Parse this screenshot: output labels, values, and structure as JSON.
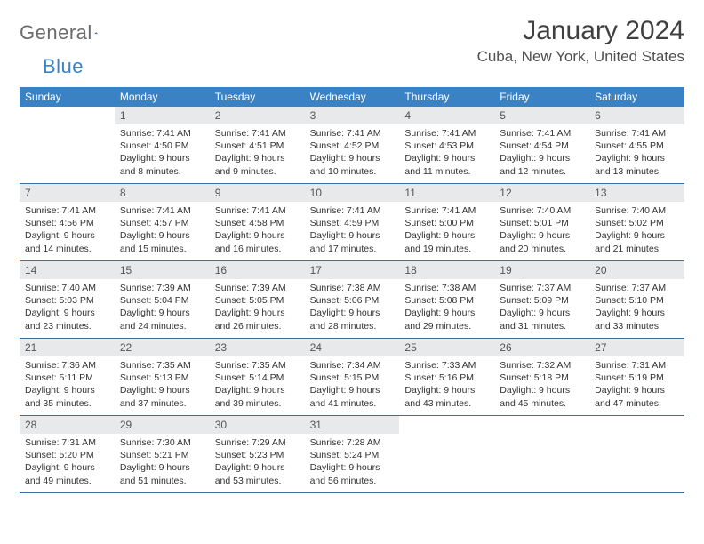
{
  "brand": {
    "part1": "General",
    "part2": "Blue"
  },
  "title": "January 2024",
  "location": "Cuba, New York, United States",
  "colors": {
    "header_bg": "#3b82c4",
    "header_text": "#ffffff",
    "daynum_bg": "#e7e9eb",
    "border": "#3b6fa0",
    "text": "#333333",
    "logo_gray": "#6b6b6b",
    "logo_blue": "#3b82c4"
  },
  "weekdays": [
    "Sunday",
    "Monday",
    "Tuesday",
    "Wednesday",
    "Thursday",
    "Friday",
    "Saturday"
  ],
  "weeks": [
    [
      {
        "n": "",
        "sr": "",
        "ss": "",
        "dl": ""
      },
      {
        "n": "1",
        "sr": "Sunrise: 7:41 AM",
        "ss": "Sunset: 4:50 PM",
        "dl": "Daylight: 9 hours and 8 minutes."
      },
      {
        "n": "2",
        "sr": "Sunrise: 7:41 AM",
        "ss": "Sunset: 4:51 PM",
        "dl": "Daylight: 9 hours and 9 minutes."
      },
      {
        "n": "3",
        "sr": "Sunrise: 7:41 AM",
        "ss": "Sunset: 4:52 PM",
        "dl": "Daylight: 9 hours and 10 minutes."
      },
      {
        "n": "4",
        "sr": "Sunrise: 7:41 AM",
        "ss": "Sunset: 4:53 PM",
        "dl": "Daylight: 9 hours and 11 minutes."
      },
      {
        "n": "5",
        "sr": "Sunrise: 7:41 AM",
        "ss": "Sunset: 4:54 PM",
        "dl": "Daylight: 9 hours and 12 minutes."
      },
      {
        "n": "6",
        "sr": "Sunrise: 7:41 AM",
        "ss": "Sunset: 4:55 PM",
        "dl": "Daylight: 9 hours and 13 minutes."
      }
    ],
    [
      {
        "n": "7",
        "sr": "Sunrise: 7:41 AM",
        "ss": "Sunset: 4:56 PM",
        "dl": "Daylight: 9 hours and 14 minutes."
      },
      {
        "n": "8",
        "sr": "Sunrise: 7:41 AM",
        "ss": "Sunset: 4:57 PM",
        "dl": "Daylight: 9 hours and 15 minutes."
      },
      {
        "n": "9",
        "sr": "Sunrise: 7:41 AM",
        "ss": "Sunset: 4:58 PM",
        "dl": "Daylight: 9 hours and 16 minutes."
      },
      {
        "n": "10",
        "sr": "Sunrise: 7:41 AM",
        "ss": "Sunset: 4:59 PM",
        "dl": "Daylight: 9 hours and 17 minutes."
      },
      {
        "n": "11",
        "sr": "Sunrise: 7:41 AM",
        "ss": "Sunset: 5:00 PM",
        "dl": "Daylight: 9 hours and 19 minutes."
      },
      {
        "n": "12",
        "sr": "Sunrise: 7:40 AM",
        "ss": "Sunset: 5:01 PM",
        "dl": "Daylight: 9 hours and 20 minutes."
      },
      {
        "n": "13",
        "sr": "Sunrise: 7:40 AM",
        "ss": "Sunset: 5:02 PM",
        "dl": "Daylight: 9 hours and 21 minutes."
      }
    ],
    [
      {
        "n": "14",
        "sr": "Sunrise: 7:40 AM",
        "ss": "Sunset: 5:03 PM",
        "dl": "Daylight: 9 hours and 23 minutes."
      },
      {
        "n": "15",
        "sr": "Sunrise: 7:39 AM",
        "ss": "Sunset: 5:04 PM",
        "dl": "Daylight: 9 hours and 24 minutes."
      },
      {
        "n": "16",
        "sr": "Sunrise: 7:39 AM",
        "ss": "Sunset: 5:05 PM",
        "dl": "Daylight: 9 hours and 26 minutes."
      },
      {
        "n": "17",
        "sr": "Sunrise: 7:38 AM",
        "ss": "Sunset: 5:06 PM",
        "dl": "Daylight: 9 hours and 28 minutes."
      },
      {
        "n": "18",
        "sr": "Sunrise: 7:38 AM",
        "ss": "Sunset: 5:08 PM",
        "dl": "Daylight: 9 hours and 29 minutes."
      },
      {
        "n": "19",
        "sr": "Sunrise: 7:37 AM",
        "ss": "Sunset: 5:09 PM",
        "dl": "Daylight: 9 hours and 31 minutes."
      },
      {
        "n": "20",
        "sr": "Sunrise: 7:37 AM",
        "ss": "Sunset: 5:10 PM",
        "dl": "Daylight: 9 hours and 33 minutes."
      }
    ],
    [
      {
        "n": "21",
        "sr": "Sunrise: 7:36 AM",
        "ss": "Sunset: 5:11 PM",
        "dl": "Daylight: 9 hours and 35 minutes."
      },
      {
        "n": "22",
        "sr": "Sunrise: 7:35 AM",
        "ss": "Sunset: 5:13 PM",
        "dl": "Daylight: 9 hours and 37 minutes."
      },
      {
        "n": "23",
        "sr": "Sunrise: 7:35 AM",
        "ss": "Sunset: 5:14 PM",
        "dl": "Daylight: 9 hours and 39 minutes."
      },
      {
        "n": "24",
        "sr": "Sunrise: 7:34 AM",
        "ss": "Sunset: 5:15 PM",
        "dl": "Daylight: 9 hours and 41 minutes."
      },
      {
        "n": "25",
        "sr": "Sunrise: 7:33 AM",
        "ss": "Sunset: 5:16 PM",
        "dl": "Daylight: 9 hours and 43 minutes."
      },
      {
        "n": "26",
        "sr": "Sunrise: 7:32 AM",
        "ss": "Sunset: 5:18 PM",
        "dl": "Daylight: 9 hours and 45 minutes."
      },
      {
        "n": "27",
        "sr": "Sunrise: 7:31 AM",
        "ss": "Sunset: 5:19 PM",
        "dl": "Daylight: 9 hours and 47 minutes."
      }
    ],
    [
      {
        "n": "28",
        "sr": "Sunrise: 7:31 AM",
        "ss": "Sunset: 5:20 PM",
        "dl": "Daylight: 9 hours and 49 minutes."
      },
      {
        "n": "29",
        "sr": "Sunrise: 7:30 AM",
        "ss": "Sunset: 5:21 PM",
        "dl": "Daylight: 9 hours and 51 minutes."
      },
      {
        "n": "30",
        "sr": "Sunrise: 7:29 AM",
        "ss": "Sunset: 5:23 PM",
        "dl": "Daylight: 9 hours and 53 minutes."
      },
      {
        "n": "31",
        "sr": "Sunrise: 7:28 AM",
        "ss": "Sunset: 5:24 PM",
        "dl": "Daylight: 9 hours and 56 minutes."
      },
      {
        "n": "",
        "sr": "",
        "ss": "",
        "dl": ""
      },
      {
        "n": "",
        "sr": "",
        "ss": "",
        "dl": ""
      },
      {
        "n": "",
        "sr": "",
        "ss": "",
        "dl": ""
      }
    ]
  ]
}
